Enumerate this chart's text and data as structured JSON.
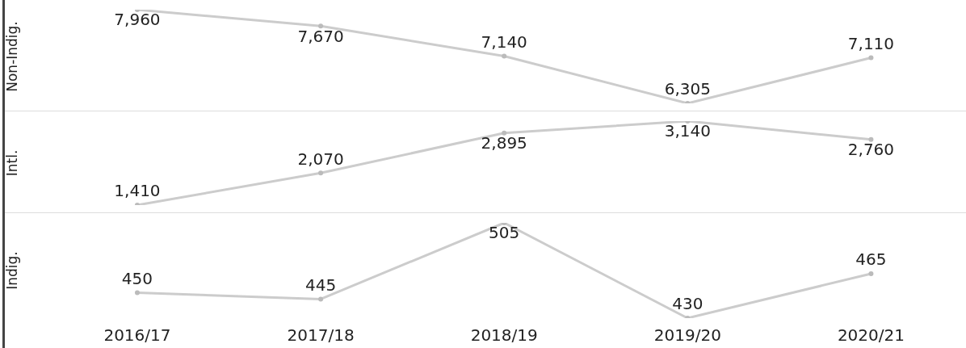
{
  "chart_data": [
    {
      "type": "line",
      "ylabel": "Non-Indig.",
      "categories": [
        "2016/17",
        "2017/18",
        "2018/19",
        "2019/20",
        "2020/21"
      ],
      "values": [
        7960,
        7670,
        7140,
        6305,
        7110
      ],
      "value_labels": [
        "7,960",
        "7,670",
        "7,140",
        "6,305",
        "7,110"
      ],
      "color": "#cccccc",
      "marker": "circle",
      "tick_labels": false
    },
    {
      "type": "line",
      "ylabel": "Intl.",
      "categories": [
        "2016/17",
        "2017/18",
        "2018/19",
        "2019/20",
        "2020/21"
      ],
      "values": [
        1410,
        2070,
        2895,
        3140,
        2760
      ],
      "value_labels": [
        "1,410",
        "2,070",
        "2,895",
        "3,140",
        "2,760"
      ],
      "color": "#cccccc",
      "marker": "circle",
      "tick_labels": false
    },
    {
      "type": "line",
      "ylabel": "Indig.",
      "categories": [
        "2016/17",
        "2017/18",
        "2018/19",
        "2019/20",
        "2020/21"
      ],
      "values": [
        450,
        445,
        505,
        430,
        465
      ],
      "color": "#cccccc",
      "marker": "circle",
      "data_labels": true,
      "tick_labels": "x"
    }
  ]
}
